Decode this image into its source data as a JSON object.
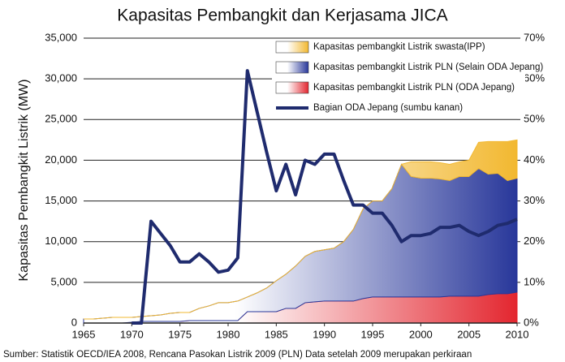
{
  "chart_data": {
    "type": "area",
    "title": "Kapasitas Pembangkit dan Kerjasama JICA",
    "y_label": "Kapasitas Pembangkit Listrik (MW)",
    "source": "Sumber: Statistik OECD/IEA 2008,  Rencana Pasokan Listrik 2009 (PLN)  Data setelah 2009 merupakan perkiraan",
    "x": [
      1965,
      1966,
      1967,
      1968,
      1969,
      1970,
      1971,
      1972,
      1973,
      1974,
      1975,
      1976,
      1977,
      1978,
      1979,
      1980,
      1981,
      1982,
      1983,
      1984,
      1985,
      1986,
      1987,
      1988,
      1989,
      1990,
      1991,
      1992,
      1993,
      1994,
      1995,
      1996,
      1997,
      1998,
      1999,
      2000,
      2001,
      2002,
      2003,
      2004,
      2005,
      2006,
      2007,
      2008,
      2009,
      2010
    ],
    "xlim": [
      1965,
      2010
    ],
    "xticks": [
      1965,
      1970,
      1975,
      1980,
      1985,
      1990,
      1995,
      2000,
      2005,
      2010
    ],
    "ylim": [
      0,
      35000
    ],
    "yticks": [
      {
        "value": 0,
        "label": "0"
      },
      {
        "value": 5000,
        "label": "5,000"
      },
      {
        "value": 10000,
        "label": "10,000"
      },
      {
        "value": 15000,
        "label": "15,000"
      },
      {
        "value": 20000,
        "label": "20,000"
      },
      {
        "value": 25000,
        "label": "25,000"
      },
      {
        "value": 30000,
        "label": "30,000"
      },
      {
        "value": 35000,
        "label": "35,000"
      }
    ],
    "y2lim": [
      0,
      70
    ],
    "y2ticks": [
      {
        "value": 0,
        "label": "0%"
      },
      {
        "value": 10,
        "label": "10%"
      },
      {
        "value": 20,
        "label": "20%"
      },
      {
        "value": 30,
        "label": "30%"
      },
      {
        "value": 40,
        "label": "40%"
      },
      {
        "value": 50,
        "label": "50%"
      },
      {
        "value": 60,
        "label": "60%"
      },
      {
        "value": 70,
        "label": "70%"
      }
    ],
    "grid": true,
    "series": [
      {
        "name": "Kapasitas pembangkit Listrik swasta(IPP)",
        "type": "area",
        "color": "#f2b830",
        "values": [
          0,
          0,
          0,
          0,
          0,
          0,
          0,
          0,
          0,
          0,
          0,
          0,
          0,
          0,
          0,
          0,
          0,
          0,
          0,
          0,
          0,
          0,
          0,
          0,
          0,
          0,
          0,
          0,
          0,
          0,
          0,
          0,
          0,
          0,
          1800,
          2000,
          2000,
          2000,
          2000,
          1800,
          2000,
          3200,
          4000,
          3900,
          4800,
          4700
        ]
      },
      {
        "name": "Kapasitas pembangkit Listrik PLN (Selain ODA Jepang)",
        "type": "area",
        "color": "#28379a",
        "values": [
          500,
          500,
          600,
          700,
          700,
          600,
          600,
          700,
          800,
          1000,
          1100,
          1000,
          1500,
          1800,
          2200,
          2200,
          2400,
          1800,
          2300,
          2900,
          3800,
          4200,
          5200,
          5700,
          6200,
          6300,
          6500,
          7300,
          8800,
          11000,
          11800,
          11800,
          13300,
          16300,
          14800,
          14600,
          14600,
          14500,
          14200,
          14700,
          14700,
          15700,
          14800,
          14800,
          13900,
          14000
        ]
      },
      {
        "name": "Kapasitas pembangkit Listrik PLN (ODA Jepang)",
        "type": "area",
        "color": "#e3262f",
        "values": [
          0,
          0,
          0,
          0,
          0,
          100,
          200,
          200,
          200,
          200,
          200,
          300,
          300,
          300,
          300,
          300,
          300,
          1400,
          1400,
          1400,
          1400,
          1800,
          1800,
          2500,
          2600,
          2700,
          2700,
          2700,
          2700,
          3000,
          3200,
          3200,
          3200,
          3200,
          3200,
          3200,
          3200,
          3200,
          3300,
          3300,
          3300,
          3300,
          3500,
          3600,
          3600,
          3800
        ]
      },
      {
        "name": "Bagian ODA Jepang (sumbu kanan)",
        "type": "line",
        "axis": "y2",
        "color": "#1f2b6e",
        "values": [
          null,
          null,
          null,
          null,
          null,
          0,
          0,
          25,
          22,
          19,
          15,
          15,
          17,
          15,
          12.5,
          13,
          16,
          62,
          52,
          42,
          32.5,
          39,
          31.5,
          40,
          39,
          41.5,
          41.5,
          35,
          29,
          29,
          27,
          27,
          24,
          20,
          21.5,
          21.5,
          22,
          23.5,
          23.5,
          24,
          22.5,
          21.5,
          22.5,
          24,
          24.5,
          25.5
        ]
      }
    ]
  }
}
